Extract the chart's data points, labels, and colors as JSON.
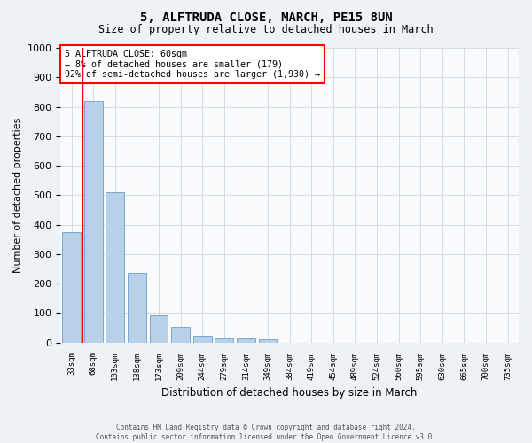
{
  "title": "5, ALFTRUDA CLOSE, MARCH, PE15 8UN",
  "subtitle": "Size of property relative to detached houses in March",
  "xlabel": "Distribution of detached houses by size in March",
  "ylabel": "Number of detached properties",
  "bar_labels": [
    "33sqm",
    "68sqm",
    "103sqm",
    "138sqm",
    "173sqm",
    "209sqm",
    "244sqm",
    "279sqm",
    "314sqm",
    "349sqm",
    "384sqm",
    "419sqm",
    "454sqm",
    "489sqm",
    "524sqm",
    "560sqm",
    "595sqm",
    "630sqm",
    "665sqm",
    "700sqm",
    "735sqm"
  ],
  "bar_values": [
    375,
    820,
    510,
    237,
    93,
    52,
    22,
    14,
    13,
    10,
    0,
    0,
    0,
    0,
    0,
    0,
    0,
    0,
    0,
    0,
    0
  ],
  "bar_color": "#b8d0e8",
  "bar_edge_color": "#6aa0cc",
  "ylim": [
    0,
    1000
  ],
  "yticks": [
    0,
    100,
    200,
    300,
    400,
    500,
    600,
    700,
    800,
    900,
    1000
  ],
  "annotation_title": "5 ALFTRUDA CLOSE: 60sqm",
  "annotation_line1": "← 8% of detached houses are smaller (179)",
  "annotation_line2": "92% of semi-detached houses are larger (1,930) →",
  "red_line_x": 0.5,
  "footer1": "Contains HM Land Registry data © Crown copyright and database right 2024.",
  "footer2": "Contains public sector information licensed under the Open Government Licence v3.0.",
  "bg_color": "#eef2f7",
  "plot_bg_color": "#f8fafc",
  "grid_color": "#c8d0dc"
}
